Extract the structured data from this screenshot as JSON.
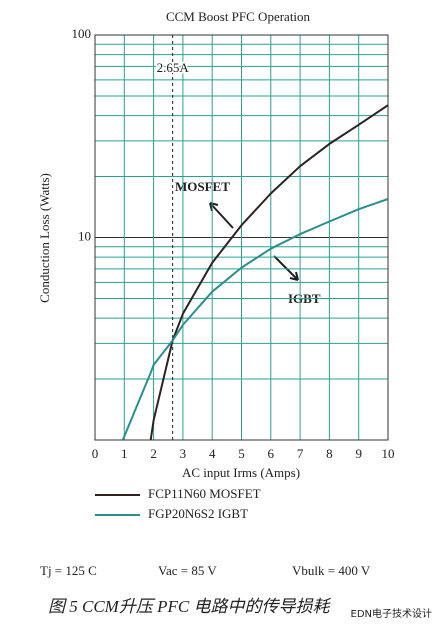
{
  "chart_data": {
    "type": "line",
    "title": "CCM Boost PFC Operation",
    "x_label": "AC input Irms (Amps)",
    "y_label": "Conduction Loss (Watts)",
    "x": [
      0.95,
      1.9,
      2,
      2.65,
      3,
      4,
      5,
      6,
      7,
      8,
      9,
      10
    ],
    "series": [
      {
        "name": "FCP11N60 MOSFET",
        "color": "#2e2222",
        "values": [
          null,
          1,
          1.25,
          3.1,
          4.2,
          7.5,
          11.5,
          16.5,
          22.5,
          29,
          36,
          45
        ]
      },
      {
        "name": "FGP20N6S2 IGBT",
        "color": "#2a8f8c",
        "values": [
          1,
          2.15,
          2.35,
          3.1,
          3.7,
          5.4,
          7.1,
          8.8,
          10.4,
          12,
          13.8,
          15.5
        ]
      }
    ],
    "xlim": [
      0,
      10
    ],
    "xticks": [
      0,
      1,
      2,
      3,
      4,
      5,
      6,
      7,
      8,
      9,
      10
    ],
    "ylim": [
      1,
      100
    ],
    "yticks": [
      10,
      100
    ],
    "log_y": true,
    "minor_yticks": [
      2,
      3,
      4,
      5,
      6,
      7,
      8,
      9,
      20,
      30,
      40,
      50,
      60,
      70,
      80,
      90
    ],
    "grid": true,
    "grid_color": "#2aa090",
    "reference_x": 2.65,
    "reference_label": "2.65A",
    "annotations": [
      "MOSFET",
      "IGBT"
    ],
    "conditions": [
      "Tj = 125 C",
      "Vac = 85 V",
      "Vbulk = 400 V"
    ],
    "caption": "图 5    CCM升压 PFC 电路中的传导损耗",
    "watermark": "EDN电子技术设计"
  }
}
